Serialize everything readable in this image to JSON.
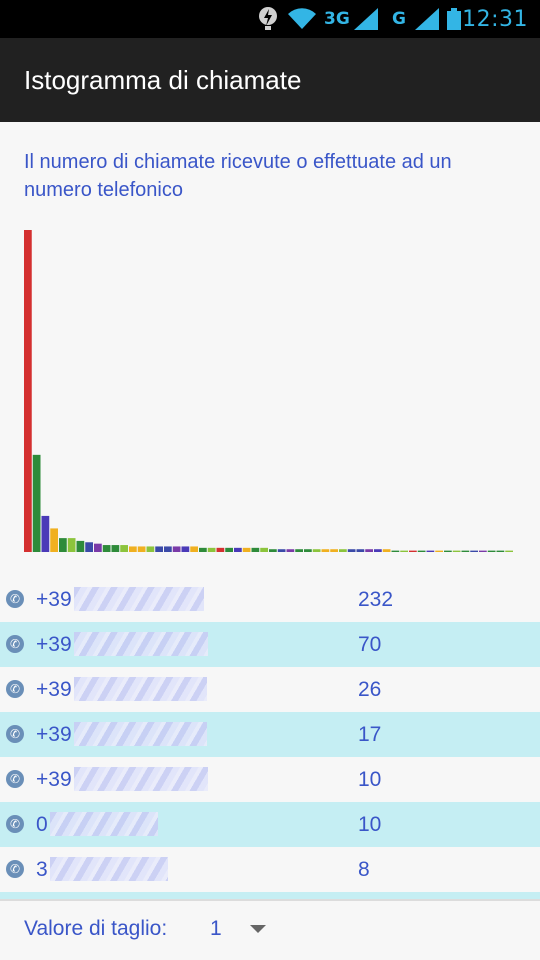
{
  "status_bar": {
    "network_1": "3G",
    "network_2": "G",
    "time": "12:31"
  },
  "app": {
    "title": "Istogramma di chiamate"
  },
  "chart_data": {
    "type": "bar",
    "title": "Il numero di chiamate ricevute o effettuate ad un numero telefonico",
    "values": [
      232,
      70,
      26,
      17,
      10,
      10,
      8,
      7,
      6,
      5,
      5,
      5,
      4,
      4,
      4,
      4,
      4,
      4,
      4,
      4,
      3,
      3,
      3,
      3,
      3,
      3,
      3,
      3,
      2,
      2,
      2,
      2,
      2,
      2,
      2,
      2,
      2,
      2,
      2,
      2,
      2,
      2,
      1,
      1,
      1,
      1,
      1,
      1,
      1,
      1,
      1,
      1,
      1,
      1,
      1,
      1
    ],
    "ylim": [
      0,
      232
    ],
    "colors": [
      "#d43030",
      "#2e8b3a",
      "#4a3ab8",
      "#f0b020",
      "#2e8b3a",
      "#8cc43c",
      "#2e8b3a",
      "#3b4aa8",
      "#7a3aa8",
      "#2e8b3a",
      "#2e8b3a",
      "#8cc43c",
      "#f0b020",
      "#f0b020",
      "#8cc43c",
      "#3b4aa8",
      "#3b4aa8",
      "#7a3aa8",
      "#4a3ab8",
      "#f0b020",
      "#2e8b3a",
      "#8cc43c"
    ]
  },
  "calls": [
    {
      "number": "+39",
      "count": "232"
    },
    {
      "number": "+39",
      "count": "70"
    },
    {
      "number": "+39",
      "count": "26"
    },
    {
      "number": "+39",
      "count": "17"
    },
    {
      "number": "+39",
      "count": "10"
    },
    {
      "number": "0",
      "count": "10"
    },
    {
      "number": "3",
      "count": "8"
    }
  ],
  "footer": {
    "threshold_label": "Valore di taglio:",
    "threshold_value": "1"
  }
}
